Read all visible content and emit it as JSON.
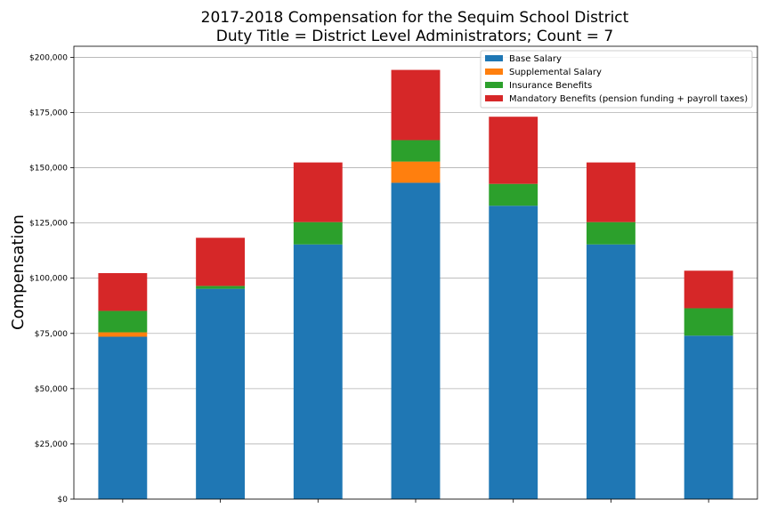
{
  "chart_data": {
    "type": "bar",
    "stacked": true,
    "title": "2017-2018 Compensation for the Sequim School District",
    "subtitle": "Duty Title = District Level Administrators; Count = 7",
    "xlabel": "",
    "ylabel": "Compensation",
    "ylim": [
      0,
      205000
    ],
    "yticks": [
      "$0",
      "$25,000",
      "$50,000",
      "$75,000",
      "$100,000",
      "$125,000",
      "$150,000",
      "$175,000",
      "$200,000"
    ],
    "ytick_values": [
      0,
      25000,
      50000,
      75000,
      100000,
      125000,
      150000,
      175000,
      200000
    ],
    "grid": "horizontal",
    "legend_position": "top-right",
    "categories": [
      "",
      "",
      "",
      "",
      "",
      "",
      ""
    ],
    "series": [
      {
        "name": "Base Salary",
        "color": "#1f77b4",
        "values": [
          73500,
          95200,
          115300,
          143200,
          132800,
          115300,
          74000
        ]
      },
      {
        "name": "Supplemental Salary",
        "color": "#ff7f0e",
        "values": [
          2000,
          0,
          0,
          9600,
          0,
          0,
          0
        ]
      },
      {
        "name": "Insurance Benefits",
        "color": "#2ca02c",
        "values": [
          9700,
          1300,
          10100,
          9700,
          9900,
          10100,
          12400
        ]
      },
      {
        "name": "Mandatory Benefits (pension funding + payroll taxes)",
        "color": "#d62728",
        "values": [
          17100,
          21800,
          27000,
          31800,
          30400,
          27000,
          17000
        ]
      }
    ]
  }
}
